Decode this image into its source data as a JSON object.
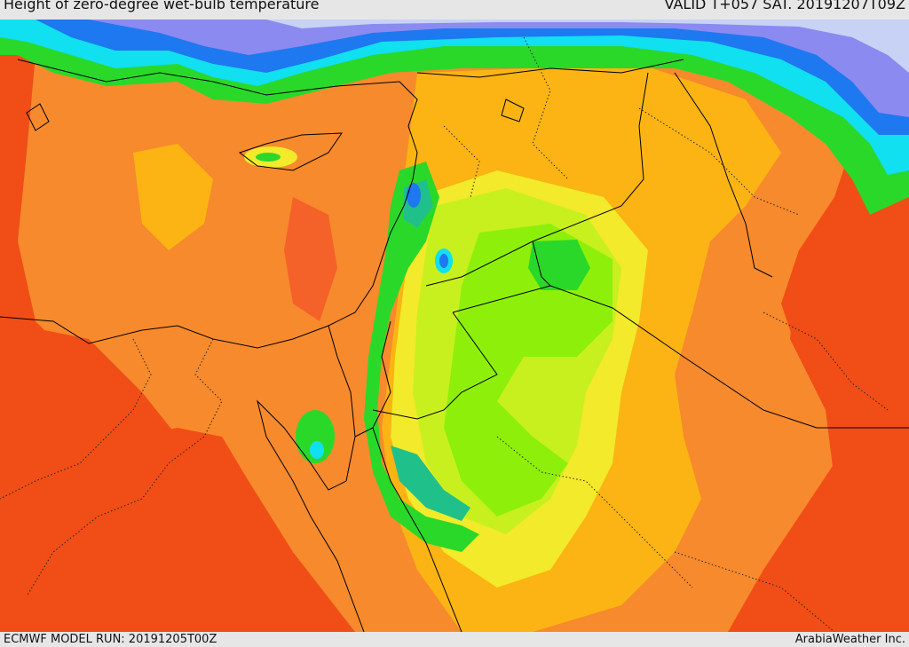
{
  "header": {
    "title": "Height of zero-degree wet-bulb temperature",
    "valid": "VALID T+057 SAT. 20191207T09Z"
  },
  "footer": {
    "model_run": "ECMWF MODEL RUN: 20191205T00Z",
    "credit": "ArabiaWeather Inc."
  },
  "colors": {
    "red": "#f04e16",
    "dark_orange": "#f4622a",
    "orange": "#f78a2c",
    "amber": "#fbb414",
    "yellow": "#f2ea2a",
    "yellow_green": "#c8f01e",
    "light_green": "#8ef00a",
    "green": "#2ad82a",
    "teal": "#20c08a",
    "cyan": "#10e0f0",
    "blue": "#1e78f0",
    "periwinkle": "#8a8af0",
    "lavender": "#c8d2f4"
  }
}
